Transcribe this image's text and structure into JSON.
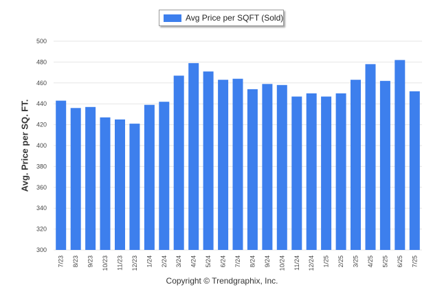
{
  "chart_data": {
    "type": "bar",
    "title": "",
    "xlabel": "",
    "ylabel": "Avg. Price per SQ. FT.",
    "legend": {
      "position": "top-center",
      "entries": [
        "Avg Price per SQFT (Sold)"
      ]
    },
    "ylim": [
      300,
      500
    ],
    "yticks": [
      300,
      320,
      340,
      360,
      380,
      400,
      420,
      440,
      460,
      480,
      500
    ],
    "grid": true,
    "categories": [
      "7/23",
      "8/23",
      "9/23",
      "10/23",
      "11/23",
      "12/23",
      "1/24",
      "2/24",
      "3/24",
      "4/24",
      "5/24",
      "6/24",
      "7/24",
      "8/24",
      "9/24",
      "10/24",
      "11/24",
      "12/24",
      "1/25",
      "2/25",
      "3/25",
      "4/25",
      "5/25",
      "6/25",
      "7/25"
    ],
    "series": [
      {
        "name": "Avg Price per SQFT (Sold)",
        "color": "#3d7fed",
        "values": [
          443,
          436,
          437,
          427,
          425,
          421,
          439,
          442,
          467,
          479,
          471,
          463,
          464,
          454,
          459,
          458,
          447,
          450,
          447,
          450,
          463,
          478,
          462,
          482,
          452
        ]
      }
    ]
  },
  "footer": {
    "copyright": "Copyright © Trendgraphix, Inc."
  }
}
